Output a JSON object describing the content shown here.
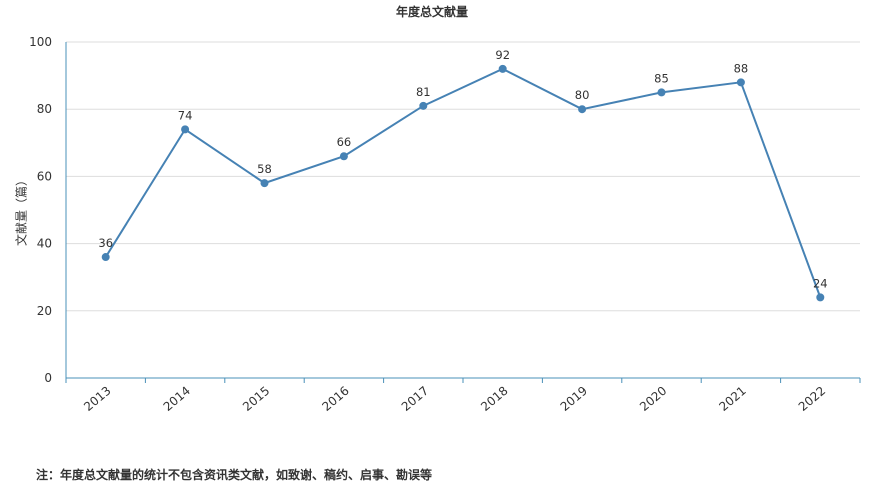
{
  "chart_data": {
    "type": "line",
    "title": "年度总文献量",
    "xlabel": "",
    "ylabel": "文献量（篇）",
    "categories": [
      "2013",
      "2014",
      "2015",
      "2016",
      "2017",
      "2018",
      "2019",
      "2020",
      "2021",
      "2022"
    ],
    "series": [
      {
        "values": [
          36,
          74,
          58,
          66,
          81,
          92,
          80,
          85,
          88,
          24
        ],
        "color": "#4682b4"
      }
    ],
    "ylim": [
      0,
      100
    ],
    "yticks": [
      "0",
      "20",
      "40",
      "60",
      "80",
      "100"
    ],
    "grid": true,
    "data_labels": true
  },
  "footnote": "注：年度总文献量的统计不包含资讯类文献，如致谢、稿约、启事、勘误等",
  "colors": {
    "line": "#4682b4",
    "grid": "#dddddd",
    "axis": "#4a90b8"
  }
}
